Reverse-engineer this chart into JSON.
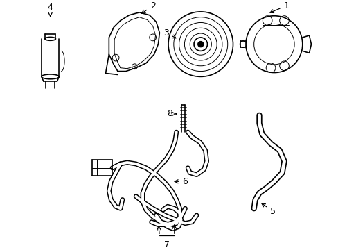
{
  "bg_color": "#ffffff",
  "line_color": "#000000",
  "figsize": [
    4.89,
    3.6
  ],
  "dpi": 100,
  "lw": 1.2,
  "hose_lw": 4.0,
  "thin_lw": 0.7
}
